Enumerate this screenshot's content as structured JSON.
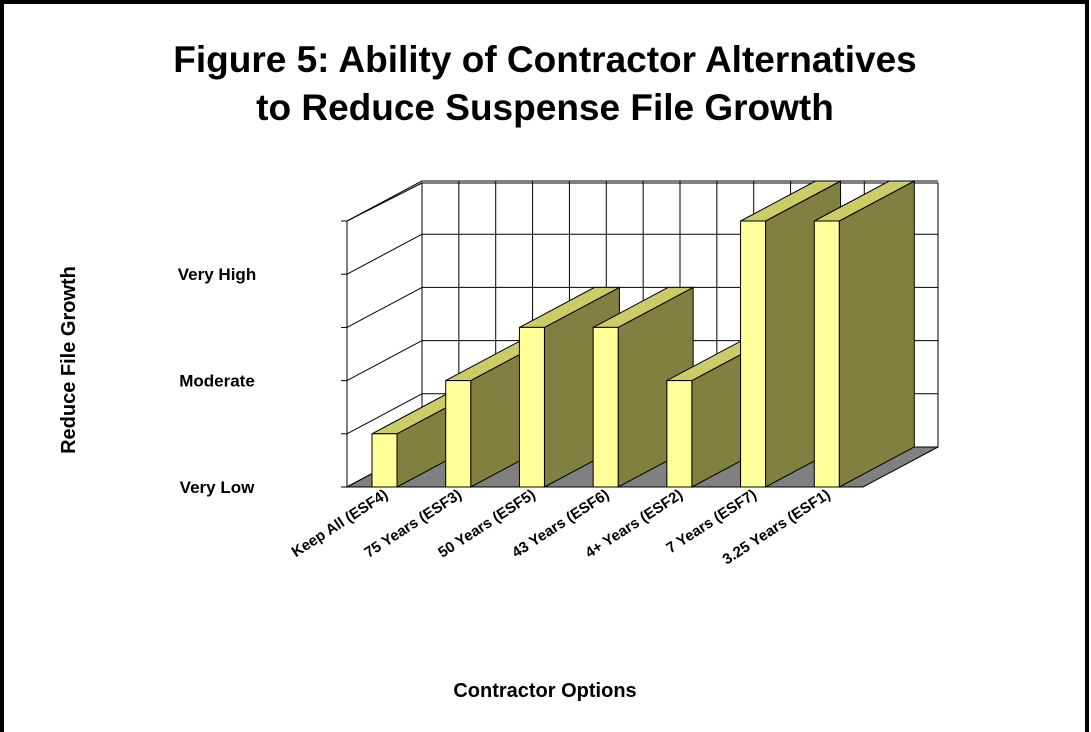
{
  "chart_data": {
    "type": "bar3d",
    "title": [
      "Figure 5:  Ability of Contractor Alternatives",
      "to Reduce Suspense File Growth"
    ],
    "x_label": "Contractor Options",
    "y_label": "Reduce File Growth",
    "categories": [
      "Keep All (ESF4)",
      "75 Years (ESF3)",
      "50 Years (ESF5)",
      "43 Years (ESF6)",
      "4+ Years (ESF2)",
      "7 Years (ESF7)",
      "3.25 Years (ESF1)"
    ],
    "values": [
      1,
      2,
      3,
      3,
      2,
      5,
      5
    ],
    "color": "#ffff99",
    "ylim": [
      0,
      5
    ],
    "yticks": [
      {
        "value": 0,
        "label": "Very Low"
      },
      {
        "value": 1
      },
      {
        "value": 2,
        "label": "Moderate"
      },
      {
        "value": 3
      },
      {
        "value": 4,
        "label": "Very High"
      },
      {
        "value": 5
      }
    ],
    "grid": true
  }
}
